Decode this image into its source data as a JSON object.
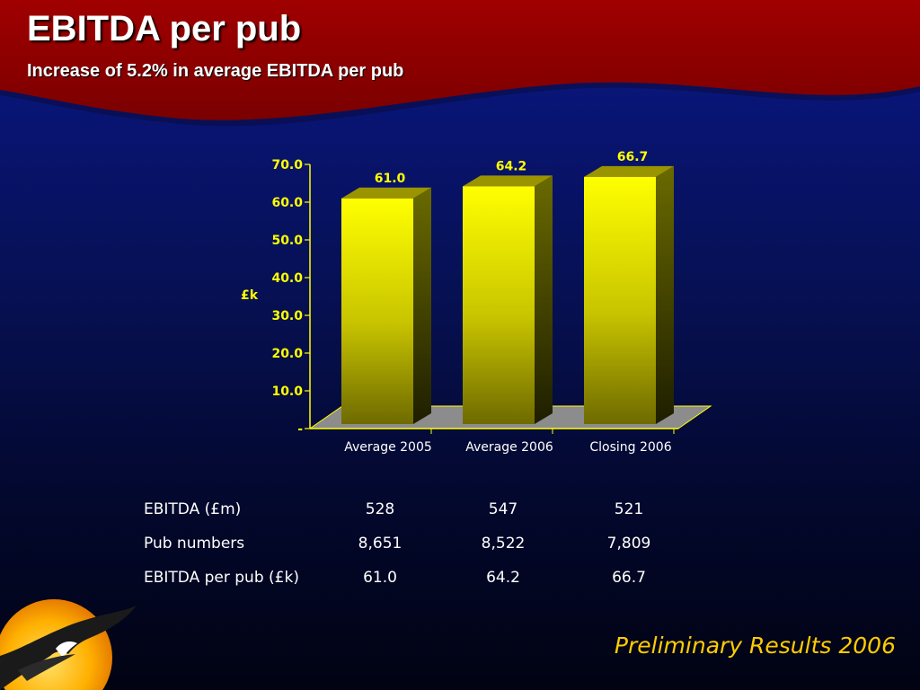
{
  "slide": {
    "title": "EBITDA per pub",
    "subtitle": "Increase of 5.2% in average EBITDA per pub",
    "footer": "Preliminary Results 2006"
  },
  "colors": {
    "header": "#8b0000",
    "bar_front": "#ffff00",
    "bar_side": "#3a3a00",
    "text_accent": "#ffcc00",
    "floor": "#8c8c8c"
  },
  "chart_data": {
    "type": "bar",
    "title": "",
    "xlabel": "",
    "ylabel": "£k",
    "categories": [
      "Average 2005",
      "Average 2006",
      "Closing 2006"
    ],
    "values": [
      61.0,
      64.2,
      66.7
    ],
    "data_labels": [
      "61.0",
      "64.2",
      "66.7"
    ],
    "ylim": [
      0,
      70
    ],
    "ytick_values": [
      0,
      10,
      20,
      30,
      40,
      50,
      60,
      70
    ],
    "ytick_labels": [
      "-",
      "10.0",
      "20.0",
      "30.0",
      "40.0",
      "50.0",
      "60.0",
      "70.0"
    ],
    "grid": false,
    "style": "3d"
  },
  "table": {
    "rows": [
      {
        "label": "EBITDA (£m)",
        "values": [
          "528",
          "547",
          "521"
        ]
      },
      {
        "label": "Pub numbers",
        "values": [
          "8,651",
          "8,522",
          "7,809"
        ]
      },
      {
        "label": "EBITDA per pub (£k)",
        "values": [
          "61.0",
          "64.2",
          "66.7"
        ]
      }
    ]
  }
}
